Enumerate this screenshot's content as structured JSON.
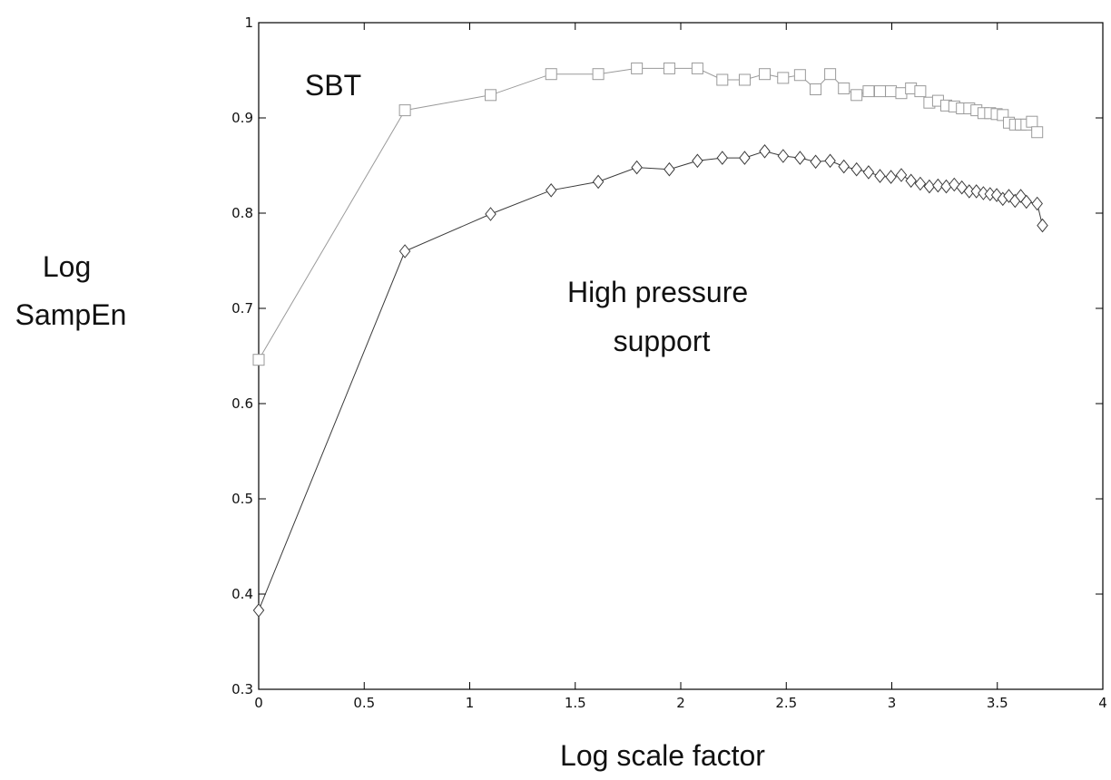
{
  "chart_data": {
    "type": "line",
    "title": "",
    "xlabel": "Log scale factor",
    "ylabel_lines": [
      "Log",
      "SampEn"
    ],
    "xlim": [
      0,
      4
    ],
    "ylim": [
      0.3,
      1
    ],
    "x_ticks": [
      0,
      0.5,
      1,
      1.5,
      2,
      2.5,
      3,
      3.5,
      4
    ],
    "x_tick_labels": [
      "0",
      "0.5",
      "1",
      "1.5",
      "2",
      "2.5",
      "3",
      "3.5",
      "4"
    ],
    "y_ticks": [
      0.3,
      0.4,
      0.5,
      0.6,
      0.7,
      0.8,
      0.9,
      1
    ],
    "y_tick_labels": [
      "0.3",
      "0.4",
      "0.5",
      "0.6",
      "0.7",
      "0.8",
      "0.9",
      "1"
    ],
    "grid": false,
    "series": [
      {
        "name": "SBT",
        "marker": "square",
        "color": "#9a9a9a",
        "points": [
          [
            0,
            0.646
          ],
          [
            0.693,
            0.908
          ],
          [
            1.099,
            0.924
          ],
          [
            1.386,
            0.946
          ],
          [
            1.609,
            0.946
          ],
          [
            1.792,
            0.952
          ],
          [
            1.946,
            0.952
          ],
          [
            2.079,
            0.952
          ],
          [
            2.197,
            0.94
          ],
          [
            2.303,
            0.94
          ],
          [
            2.398,
            0.946
          ],
          [
            2.485,
            0.942
          ],
          [
            2.565,
            0.945
          ],
          [
            2.639,
            0.93
          ],
          [
            2.708,
            0.946
          ],
          [
            2.773,
            0.931
          ],
          [
            2.833,
            0.924
          ],
          [
            2.89,
            0.928
          ],
          [
            2.944,
            0.928
          ],
          [
            2.996,
            0.928
          ],
          [
            3.045,
            0.926
          ],
          [
            3.091,
            0.931
          ],
          [
            3.135,
            0.928
          ],
          [
            3.178,
            0.916
          ],
          [
            3.219,
            0.918
          ],
          [
            3.258,
            0.913
          ],
          [
            3.296,
            0.912
          ],
          [
            3.332,
            0.91
          ],
          [
            3.367,
            0.91
          ],
          [
            3.401,
            0.908
          ],
          [
            3.434,
            0.905
          ],
          [
            3.466,
            0.905
          ],
          [
            3.497,
            0.904
          ],
          [
            3.526,
            0.903
          ],
          [
            3.555,
            0.895
          ],
          [
            3.584,
            0.893
          ],
          [
            3.611,
            0.893
          ],
          [
            3.638,
            0.893
          ],
          [
            3.664,
            0.896
          ],
          [
            3.689,
            0.885
          ]
        ]
      },
      {
        "name": "High pressure support",
        "marker": "diamond",
        "color": "#3a3a3a",
        "points": [
          [
            0,
            0.383
          ],
          [
            0.693,
            0.76
          ],
          [
            1.099,
            0.799
          ],
          [
            1.386,
            0.824
          ],
          [
            1.609,
            0.833
          ],
          [
            1.792,
            0.848
          ],
          [
            1.946,
            0.846
          ],
          [
            2.079,
            0.855
          ],
          [
            2.197,
            0.858
          ],
          [
            2.303,
            0.858
          ],
          [
            2.398,
            0.865
          ],
          [
            2.485,
            0.86
          ],
          [
            2.565,
            0.858
          ],
          [
            2.639,
            0.854
          ],
          [
            2.708,
            0.855
          ],
          [
            2.773,
            0.849
          ],
          [
            2.833,
            0.846
          ],
          [
            2.89,
            0.843
          ],
          [
            2.944,
            0.839
          ],
          [
            2.996,
            0.838
          ],
          [
            3.045,
            0.84
          ],
          [
            3.091,
            0.834
          ],
          [
            3.135,
            0.831
          ],
          [
            3.178,
            0.828
          ],
          [
            3.219,
            0.829
          ],
          [
            3.258,
            0.828
          ],
          [
            3.296,
            0.83
          ],
          [
            3.332,
            0.827
          ],
          [
            3.367,
            0.823
          ],
          [
            3.401,
            0.823
          ],
          [
            3.434,
            0.821
          ],
          [
            3.466,
            0.82
          ],
          [
            3.497,
            0.819
          ],
          [
            3.526,
            0.815
          ],
          [
            3.555,
            0.818
          ],
          [
            3.584,
            0.813
          ],
          [
            3.611,
            0.818
          ],
          [
            3.638,
            0.812
          ],
          [
            3.689,
            0.81
          ],
          [
            3.714,
            0.787
          ]
        ]
      }
    ],
    "annotations": [
      {
        "id": "sbt",
        "lines": [
          "SBT"
        ],
        "x": 0.36,
        "y": 0.955
      },
      {
        "id": "hps",
        "lines": [
          "High pressure",
          "support"
        ],
        "x": 1.92,
        "y": 0.69
      }
    ]
  }
}
